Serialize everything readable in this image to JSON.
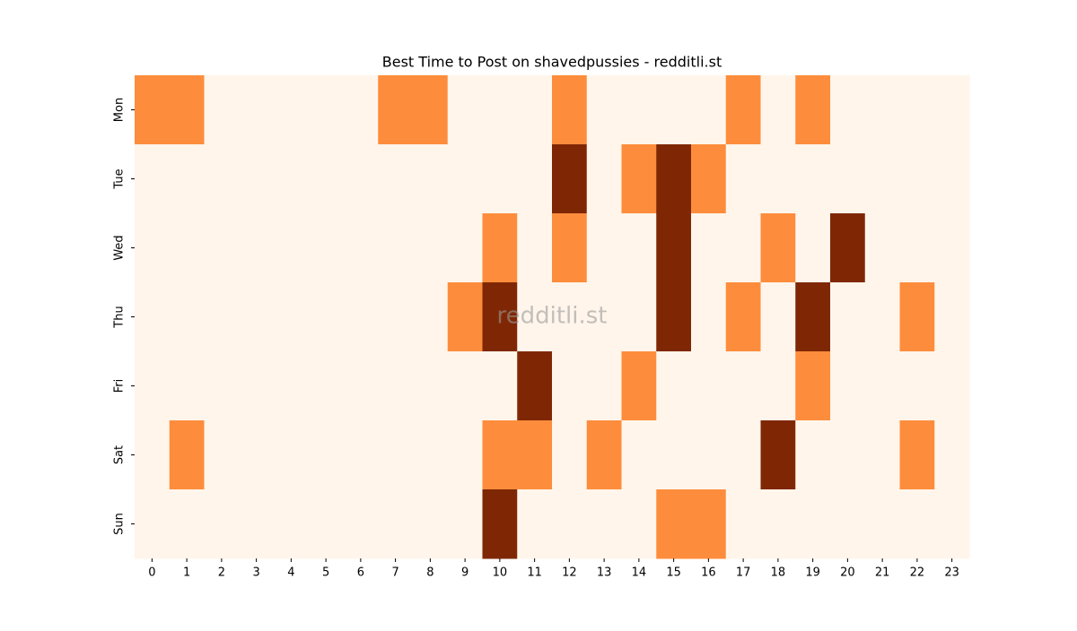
{
  "chart_data": {
    "type": "heatmap",
    "title": "Best Time to Post on shavedpussies - redditli.st",
    "watermark": "redditli.st",
    "x": [
      0,
      1,
      2,
      3,
      4,
      5,
      6,
      7,
      8,
      9,
      10,
      11,
      12,
      13,
      14,
      15,
      16,
      17,
      18,
      19,
      20,
      21,
      22,
      23
    ],
    "y": [
      "Mon",
      "Tue",
      "Wed",
      "Thu",
      "Fri",
      "Sat",
      "Sun"
    ],
    "colorscale": [
      "#fff5eb",
      "#fd8d3c",
      "#7f2704"
    ],
    "values": [
      [
        1,
        1,
        0,
        0,
        0,
        0,
        0,
        1,
        1,
        0,
        0,
        0,
        1,
        0,
        0,
        0,
        0,
        1,
        0,
        1,
        0,
        0,
        0,
        0
      ],
      [
        0,
        0,
        0,
        0,
        0,
        0,
        0,
        0,
        0,
        0,
        0,
        0,
        2,
        0,
        1,
        2,
        1,
        0,
        0,
        0,
        0,
        0,
        0,
        0
      ],
      [
        0,
        0,
        0,
        0,
        0,
        0,
        0,
        0,
        0,
        0,
        1,
        0,
        1,
        0,
        0,
        2,
        0,
        0,
        1,
        0,
        2,
        0,
        0,
        0
      ],
      [
        0,
        0,
        0,
        0,
        0,
        0,
        0,
        0,
        0,
        1,
        2,
        0,
        0,
        0,
        0,
        2,
        0,
        1,
        0,
        2,
        0,
        0,
        1,
        0
      ],
      [
        0,
        0,
        0,
        0,
        0,
        0,
        0,
        0,
        0,
        0,
        0,
        2,
        0,
        0,
        1,
        0,
        0,
        0,
        0,
        1,
        0,
        0,
        0,
        0
      ],
      [
        0,
        1,
        0,
        0,
        0,
        0,
        0,
        0,
        0,
        0,
        1,
        1,
        0,
        1,
        0,
        0,
        0,
        0,
        2,
        0,
        0,
        0,
        1,
        0
      ],
      [
        0,
        0,
        0,
        0,
        0,
        0,
        0,
        0,
        0,
        0,
        2,
        0,
        0,
        0,
        0,
        1,
        1,
        0,
        0,
        0,
        0,
        0,
        0,
        0
      ]
    ]
  }
}
